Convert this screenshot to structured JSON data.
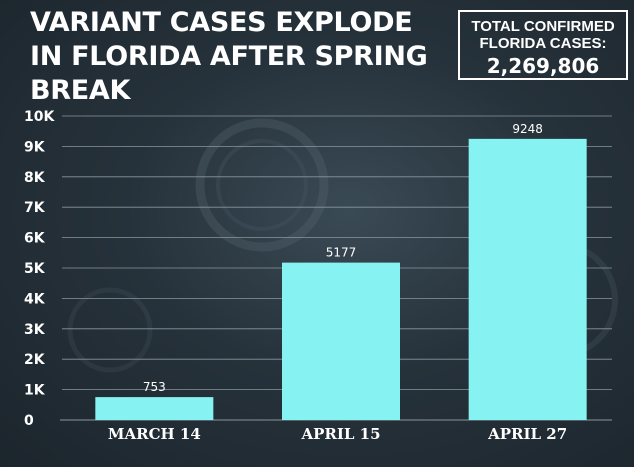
{
  "colors": {
    "bar": "#86F2F2",
    "grid": "#8a969d",
    "text": "#ffffff"
  },
  "header": {
    "title": "VARIANT CASES EXPLODE IN FLORIDA AFTER SPRING BREAK",
    "total_label": "TOTAL CONFIRMED FLORIDA CASES:",
    "total_value": "2,269,806"
  },
  "chart_data": {
    "type": "bar",
    "title": "VARIANT CASES EXPLODE IN FLORIDA AFTER SPRING BREAK",
    "categories": [
      "MARCH 14",
      "APRIL 15",
      "APRIL 27"
    ],
    "values": [
      753,
      5177,
      9248
    ],
    "data_labels": [
      "753",
      "5177",
      "9248"
    ],
    "ylim": [
      0,
      10000
    ],
    "yticks": [
      0,
      1000,
      2000,
      3000,
      4000,
      5000,
      6000,
      7000,
      8000,
      9000,
      10000
    ],
    "ytick_labels": [
      "0",
      "1K",
      "2K",
      "3K",
      "4K",
      "5K",
      "6K",
      "7K",
      "8K",
      "9K",
      "10K"
    ],
    "grid": true,
    "legend": "none"
  }
}
